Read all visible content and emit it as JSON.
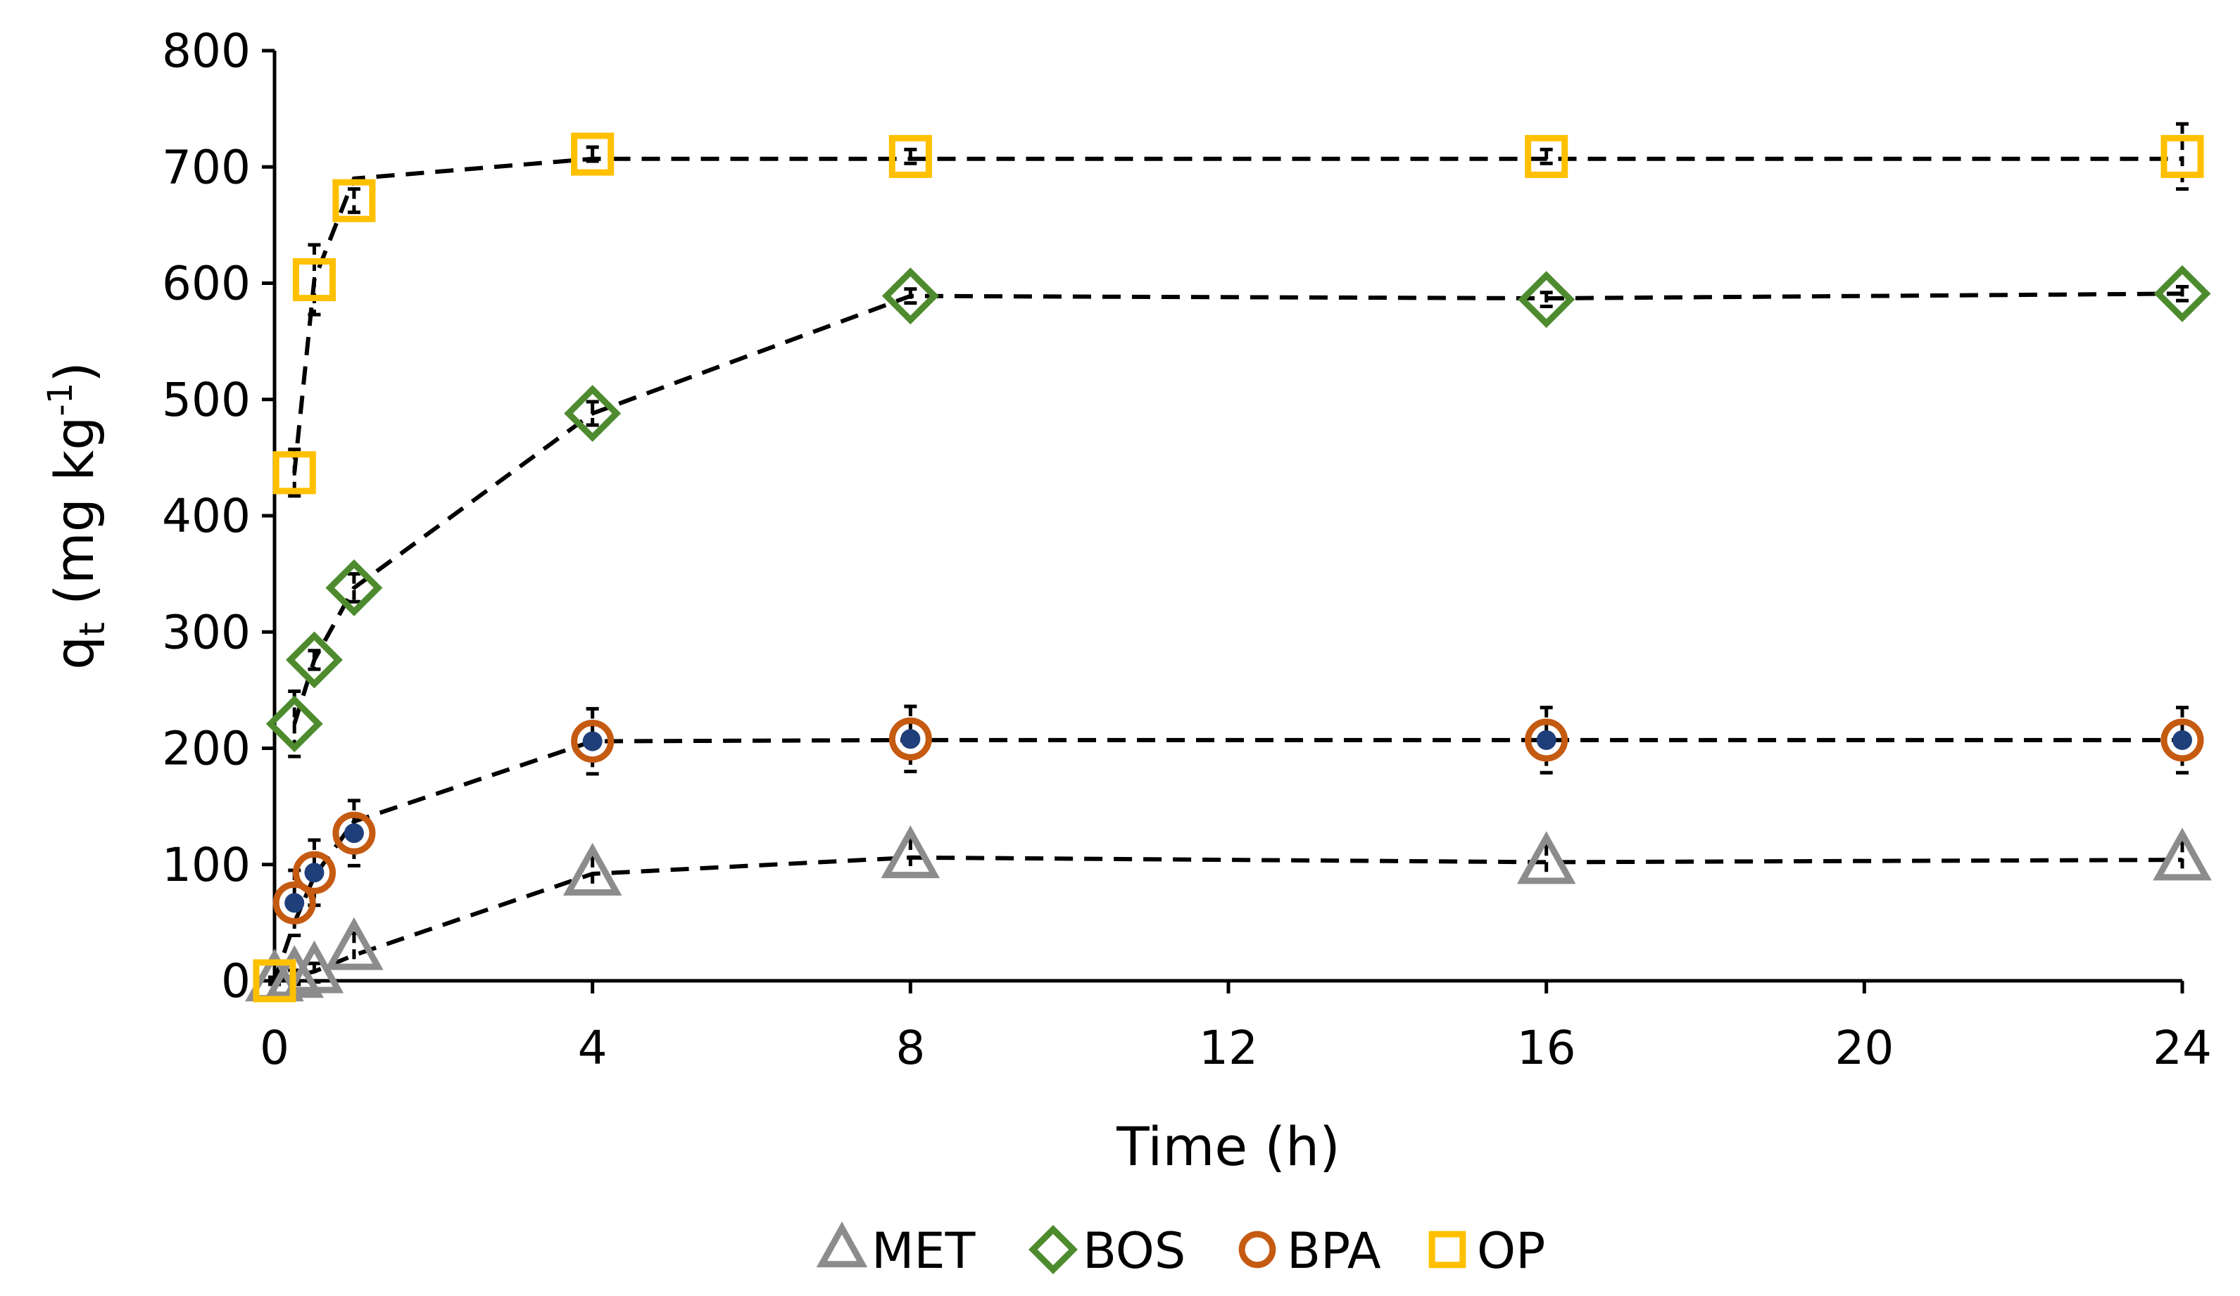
{
  "chart_data": {
    "type": "scatter",
    "title": "",
    "xlabel": "Time (h)",
    "ylabel": {
      "base": "q",
      "subscript": "t",
      "unit_open": " (mg kg",
      "unit_sup": "-1",
      "unit_close": ")"
    },
    "xlim": [
      0,
      24
    ],
    "ylim": [
      0,
      800
    ],
    "xticks": [
      0,
      4,
      8,
      12,
      16,
      20,
      24
    ],
    "yticks": [
      0,
      100,
      200,
      300,
      400,
      500,
      600,
      700,
      800
    ],
    "grid": false,
    "legend_position": "bottom",
    "fit_line_style": "dashed black",
    "fit_line_color": "#000000",
    "hidden_point_color": "#1f3f7a",
    "series": [
      {
        "name": "MET",
        "marker": "triangle",
        "color": "#8c8c8c",
        "x": [
          0,
          0.25,
          0.5,
          1,
          4,
          8,
          16,
          24
        ],
        "y": [
          0,
          3,
          7,
          27,
          91,
          106,
          101,
          104
        ],
        "err": [
          3,
          6,
          8,
          14,
          15,
          15,
          15,
          15
        ],
        "fit": [
          [
            0,
            0
          ],
          [
            0.5,
            8
          ],
          [
            1,
            22
          ],
          [
            4,
            92
          ],
          [
            8,
            106
          ],
          [
            16,
            102
          ],
          [
            24,
            104
          ]
        ]
      },
      {
        "name": "BOS",
        "marker": "diamond",
        "color": "#4e8b2e",
        "x": [
          0.25,
          0.5,
          1,
          4,
          8,
          16,
          24
        ],
        "y": [
          221,
          276,
          338,
          488,
          589,
          586,
          591
        ],
        "err": [
          28,
          8,
          12,
          10,
          6,
          6,
          6
        ],
        "fit": [
          [
            0.25,
            221
          ],
          [
            0.5,
            276
          ],
          [
            1,
            338
          ],
          [
            4,
            488
          ],
          [
            8,
            589
          ],
          [
            16,
            587
          ],
          [
            24,
            591
          ]
        ]
      },
      {
        "name": "BPA",
        "marker": "circle",
        "color": "#c55a11",
        "x": [
          0.25,
          0.5,
          1,
          4,
          8,
          16,
          24
        ],
        "y": [
          67,
          93,
          127,
          206,
          208,
          207,
          207
        ],
        "err": [
          28,
          28,
          28,
          28,
          28,
          28,
          28
        ],
        "fit": [
          [
            0,
            0
          ],
          [
            0.25,
            50
          ],
          [
            0.5,
            90
          ],
          [
            1,
            137
          ],
          [
            4,
            206
          ],
          [
            8,
            207
          ],
          [
            16,
            207
          ],
          [
            24,
            207
          ]
        ]
      },
      {
        "name": "OP",
        "marker": "square",
        "color": "#ffc000",
        "x": [
          0,
          0.25,
          0.5,
          1,
          4,
          8,
          16,
          24
        ],
        "y": [
          0,
          437,
          603,
          671,
          711,
          709,
          709,
          709
        ],
        "err": [
          0,
          20,
          30,
          10,
          6,
          6,
          6,
          28
        ],
        "fit": [
          [
            0.25,
            437
          ],
          [
            0.5,
            603
          ],
          [
            1,
            690
          ],
          [
            4,
            707
          ],
          [
            8,
            707
          ],
          [
            16,
            707
          ],
          [
            24,
            707
          ]
        ]
      }
    ]
  }
}
